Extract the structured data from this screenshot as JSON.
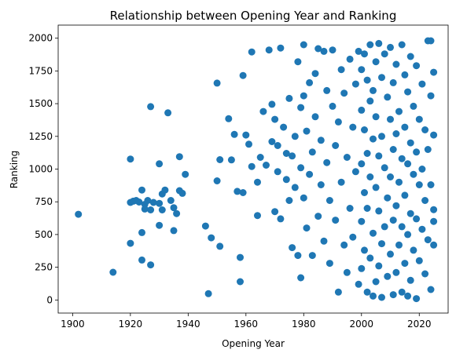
{
  "chart_data": {
    "type": "scatter",
    "title": "Relationship between Opening Year and Ranking",
    "xlabel": "Opening Year",
    "ylabel": "Ranking",
    "xlim": [
      1895,
      2030
    ],
    "ylim": [
      -100,
      2100
    ],
    "xticks": [
      1900,
      1920,
      1940,
      1960,
      1980,
      2000,
      2020
    ],
    "yticks": [
      0,
      250,
      500,
      750,
      1000,
      1250,
      1500,
      1750,
      2000
    ],
    "grid": false,
    "marker_color": "#1f77b4",
    "points": [
      [
        1902,
        655
      ],
      [
        1914,
        212
      ],
      [
        1920,
        1077
      ],
      [
        1920,
        745
      ],
      [
        1920,
        433
      ],
      [
        1921,
        755
      ],
      [
        1922,
        760
      ],
      [
        1923,
        748
      ],
      [
        1924,
        840
      ],
      [
        1924,
        515
      ],
      [
        1924,
        305
      ],
      [
        1925,
        730
      ],
      [
        1925,
        695
      ],
      [
        1926,
        760
      ],
      [
        1927,
        688
      ],
      [
        1927,
        1477
      ],
      [
        1927,
        268
      ],
      [
        1928,
        745
      ],
      [
        1930,
        1040
      ],
      [
        1930,
        570
      ],
      [
        1930,
        738
      ],
      [
        1931,
        688
      ],
      [
        1931,
        810
      ],
      [
        1932,
        840
      ],
      [
        1933,
        1430
      ],
      [
        1934,
        760
      ],
      [
        1935,
        530
      ],
      [
        1935,
        705
      ],
      [
        1936,
        660
      ],
      [
        1937,
        835
      ],
      [
        1937,
        1095
      ],
      [
        1938,
        815
      ],
      [
        1939,
        960
      ],
      [
        1946,
        565
      ],
      [
        1947,
        48
      ],
      [
        1948,
        475
      ],
      [
        1950,
        1657
      ],
      [
        1950,
        910
      ],
      [
        1951,
        1072
      ],
      [
        1951,
        410
      ],
      [
        1954,
        1385
      ],
      [
        1955,
        1070
      ],
      [
        1956,
        1265
      ],
      [
        1957,
        830
      ],
      [
        1958,
        325
      ],
      [
        1958,
        140
      ],
      [
        1959,
        1715
      ],
      [
        1959,
        820
      ],
      [
        1960,
        1260
      ],
      [
        1961,
        1190
      ],
      [
        1962,
        1020
      ],
      [
        1962,
        1895
      ],
      [
        1964,
        645
      ],
      [
        1964,
        900
      ],
      [
        1965,
        1090
      ],
      [
        1966,
        1440
      ],
      [
        1967,
        1030
      ],
      [
        1968,
        1910
      ],
      [
        1969,
        1210
      ],
      [
        1969,
        1495
      ],
      [
        1970,
        1380
      ],
      [
        1970,
        675
      ],
      [
        1971,
        980
      ],
      [
        1971,
        1180
      ],
      [
        1972,
        1925
      ],
      [
        1972,
        620
      ],
      [
        1973,
        1320
      ],
      [
        1974,
        1120
      ],
      [
        1974,
        920
      ],
      [
        1975,
        760
      ],
      [
        1975,
        1540
      ],
      [
        1976,
        400
      ],
      [
        1976,
        1100
      ],
      [
        1977,
        1250
      ],
      [
        1977,
        860
      ],
      [
        1978,
        1820
      ],
      [
        1978,
        340
      ],
      [
        1979,
        170
      ],
      [
        1979,
        1470
      ],
      [
        1979,
        1010
      ],
      [
        1980,
        1560
      ],
      [
        1980,
        780
      ],
      [
        1980,
        1950
      ],
      [
        1981,
        1290
      ],
      [
        1981,
        550
      ],
      [
        1982,
        1660
      ],
      [
        1982,
        960
      ],
      [
        1983,
        1130
      ],
      [
        1983,
        340
      ],
      [
        1984,
        1730
      ],
      [
        1984,
        1400
      ],
      [
        1985,
        640
      ],
      [
        1985,
        1920
      ],
      [
        1986,
        1220
      ],
      [
        1986,
        880
      ],
      [
        1987,
        1900
      ],
      [
        1987,
        450
      ],
      [
        1988,
        1050
      ],
      [
        1988,
        1600
      ],
      [
        1989,
        280
      ],
      [
        1989,
        760
      ],
      [
        1990,
        1480
      ],
      [
        1990,
        1910
      ],
      [
        1991,
        1180
      ],
      [
        1991,
        610
      ],
      [
        1992,
        1360
      ],
      [
        1992,
        60
      ],
      [
        1993,
        1760
      ],
      [
        1993,
        900
      ],
      [
        1994,
        420
      ],
      [
        1994,
        1580
      ],
      [
        1995,
        1090
      ],
      [
        1995,
        210
      ],
      [
        1996,
        1840
      ],
      [
        1996,
        700
      ],
      [
        1997,
        1320
      ],
      [
        1997,
        480
      ],
      [
        1998,
        1650
      ],
      [
        1998,
        980
      ],
      [
        1999,
        1900
      ],
      [
        1999,
        120
      ],
      [
        2000,
        1760
      ],
      [
        2000,
        1450
      ],
      [
        2000,
        1040
      ],
      [
        2000,
        600
      ],
      [
        2000,
        240
      ],
      [
        2001,
        1880
      ],
      [
        2001,
        1300
      ],
      [
        2001,
        820
      ],
      [
        2001,
        380
      ],
      [
        2002,
        1680
      ],
      [
        2002,
        1120
      ],
      [
        2002,
        700
      ],
      [
        2002,
        60
      ],
      [
        2003,
        1950
      ],
      [
        2003,
        1520
      ],
      [
        2003,
        940
      ],
      [
        2003,
        320
      ],
      [
        2004,
        1600
      ],
      [
        2004,
        1230
      ],
      [
        2004,
        510
      ],
      [
        2004,
        30
      ],
      [
        2005,
        1820
      ],
      [
        2005,
        1400
      ],
      [
        2005,
        860
      ],
      [
        2005,
        140
      ],
      [
        2006,
        1960
      ],
      [
        2006,
        1100
      ],
      [
        2006,
        680
      ],
      [
        2006,
        260
      ],
      [
        2007,
        1700
      ],
      [
        2007,
        1250
      ],
      [
        2007,
        430
      ],
      [
        2007,
        20
      ],
      [
        2008,
        1880
      ],
      [
        2008,
        1010
      ],
      [
        2008,
        560
      ],
      [
        2009,
        1550
      ],
      [
        2009,
        780
      ],
      [
        2009,
        180
      ],
      [
        2010,
        1930
      ],
      [
        2010,
        1380
      ],
      [
        2010,
        940
      ],
      [
        2010,
        350
      ],
      [
        2011,
        1660
      ],
      [
        2011,
        1150
      ],
      [
        2011,
        610
      ],
      [
        2011,
        40
      ],
      [
        2012,
        1800
      ],
      [
        2012,
        1270
      ],
      [
        2012,
        720
      ],
      [
        2012,
        210
      ],
      [
        2013,
        1440
      ],
      [
        2013,
        900
      ],
      [
        2013,
        420
      ],
      [
        2014,
        1950
      ],
      [
        2014,
        1080
      ],
      [
        2014,
        560
      ],
      [
        2014,
        60
      ],
      [
        2015,
        1720
      ],
      [
        2015,
        1320
      ],
      [
        2015,
        800
      ],
      [
        2015,
        280
      ],
      [
        2016,
        1590
      ],
      [
        2016,
        1040
      ],
      [
        2016,
        500
      ],
      [
        2016,
        30
      ],
      [
        2017,
        1860
      ],
      [
        2017,
        1200
      ],
      [
        2017,
        660
      ],
      [
        2017,
        150
      ],
      [
        2018,
        1480
      ],
      [
        2018,
        960
      ],
      [
        2018,
        380
      ],
      [
        2019,
        1790
      ],
      [
        2019,
        1130
      ],
      [
        2019,
        620
      ],
      [
        2019,
        10
      ],
      [
        2020,
        1380
      ],
      [
        2020,
        880
      ],
      [
        2020,
        300
      ],
      [
        2021,
        1650
      ],
      [
        2021,
        1000
      ],
      [
        2021,
        540
      ],
      [
        2022,
        1300
      ],
      [
        2022,
        760
      ],
      [
        2022,
        200
      ],
      [
        2023,
        1980
      ],
      [
        2023,
        1150
      ],
      [
        2023,
        460
      ],
      [
        2024,
        1980
      ],
      [
        2024,
        1560
      ],
      [
        2024,
        880
      ],
      [
        2024,
        80
      ],
      [
        2025,
        1740
      ],
      [
        2025,
        1260
      ],
      [
        2025,
        690
      ],
      [
        2025,
        420
      ],
      [
        2025,
        600
      ]
    ]
  }
}
